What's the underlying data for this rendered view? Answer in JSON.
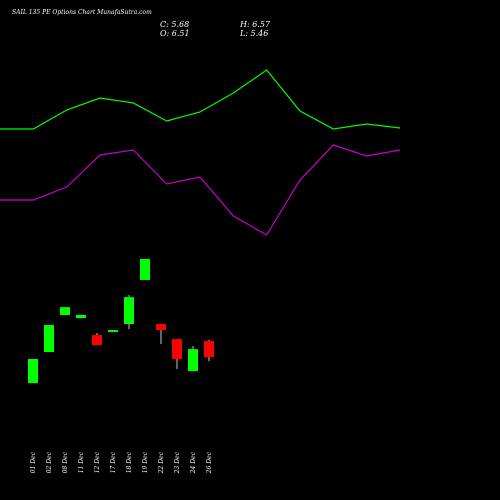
{
  "header": {
    "title": "SAIL 135 PE Options Chart MunafaSutra.com",
    "close": "C: 5.68",
    "high": "H: 6.57",
    "open": "O: 6.51",
    "low": "L: 5.46"
  },
  "chart_data": [
    {
      "type": "line",
      "categories": [
        null,
        null,
        null,
        null,
        null,
        null,
        null,
        null,
        null,
        null,
        null,
        null,
        null
      ],
      "ylim": [
        0,
        100
      ],
      "series": [
        {
          "color": "#00ff00",
          "values": [
            74.2,
            74.2,
            78,
            80.4,
            79.4,
            75.8,
            77.6,
            81.4,
            86,
            77.8,
            74.2,
            75.2,
            74.4
          ]
        },
        {
          "color": "#cc00cc",
          "values": [
            60,
            60,
            62.6,
            69,
            70,
            63.2,
            64.6,
            56.8,
            53,
            64,
            71,
            68.8,
            70
          ]
        }
      ]
    },
    {
      "type": "candlestick",
      "categories": [
        "01 Dec",
        "02 Dec",
        "08 Dec",
        "11 Dec",
        "12 Dec",
        "17 Dec",
        "18 Dec",
        "19 Dec",
        "22 Dec",
        "23 Dec",
        "24 Dec",
        "26 Dec"
      ],
      "open": [
        4.33,
        5.94,
        7.86,
        7.7,
        6.82,
        6.98,
        7.39,
        9.68,
        7.39,
        6.61,
        4.95,
        6.51
      ],
      "high": [
        5.58,
        7.34,
        8.27,
        7.86,
        6.93,
        7.08,
        8.9,
        10.77,
        7.39,
        6.61,
        6.25,
        6.57
      ],
      "low": [
        4.33,
        5.94,
        7.86,
        7.7,
        6.3,
        6.98,
        7.13,
        9.68,
        6.35,
        5.06,
        4.95,
        5.46
      ],
      "close": [
        5.58,
        7.34,
        8.27,
        7.86,
        6.3,
        7.08,
        8.79,
        10.77,
        7.08,
        5.58,
        6.09,
        5.68
      ],
      "up_color": "#00ff00",
      "down_color": "#ff0000",
      "ylim": [
        -1.74,
        24.21
      ]
    }
  ]
}
